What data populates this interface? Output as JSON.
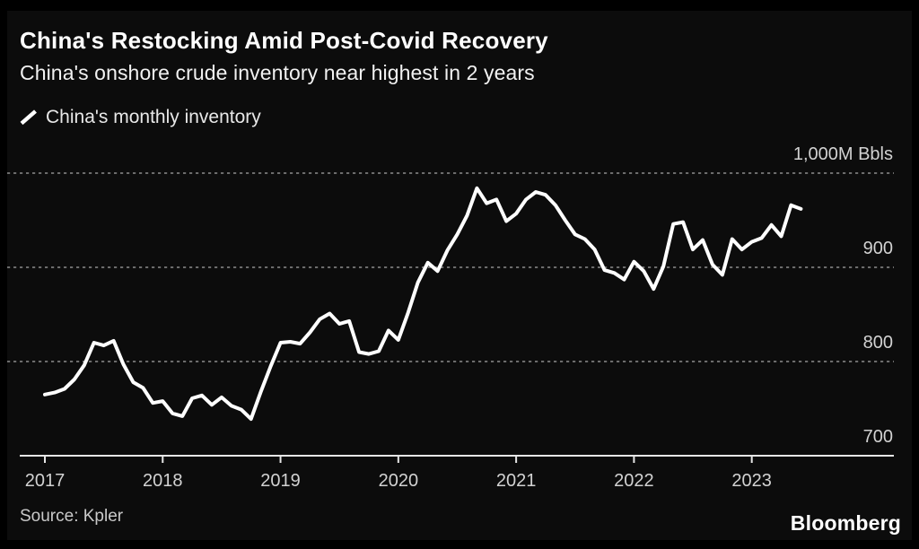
{
  "header": {
    "title": "China's Restocking Amid Post-Covid Recovery",
    "subtitle": "China's onshore crude inventory near highest in 2 years"
  },
  "legend": {
    "marker_icon": "line-swatch-icon",
    "label": "China's monthly inventory",
    "color": "#ffffff"
  },
  "footer": {
    "source": "Source: Kpler",
    "brand": "Bloomberg"
  },
  "colors": {
    "background": "#000000",
    "panel": "#0c0c0c",
    "line": "#ffffff",
    "gridline": "#7a7a7a",
    "axis": "#e6e6e6",
    "axis_text": "#d2d2d2",
    "title_text": "#ffffff"
  },
  "chart_data": {
    "type": "line",
    "title": "China's Restocking Amid Post-Covid Recovery",
    "subtitle": "China's onshore crude inventory near highest in 2 years",
    "xlabel": "",
    "ylabel": "M Bbls",
    "unit_label": "1,000M Bbls",
    "ylim": [
      700,
      1000
    ],
    "grid": "dotted-horizontal",
    "legend_position": "top-left",
    "x_ticks": [
      "2017",
      "2018",
      "2019",
      "2020",
      "2021",
      "2022",
      "2023"
    ],
    "y_tick_values": [
      1000,
      900,
      800,
      700
    ],
    "y_tick_labels": [
      "1,000M Bbls",
      "900",
      "800",
      "700"
    ],
    "y_gridlines": [
      1000,
      900,
      800
    ],
    "series": [
      {
        "name": "China's monthly inventory",
        "color": "#ffffff",
        "frequency": "monthly",
        "x_start": "2017-01",
        "x_end": "2023-06",
        "values": [
          765,
          767,
          771,
          781,
          796,
          820,
          817,
          822,
          797,
          778,
          772,
          756,
          758,
          745,
          742,
          761,
          764,
          754,
          762,
          753,
          749,
          739,
          768,
          795,
          820,
          821,
          819,
          831,
          845,
          851,
          840,
          843,
          810,
          808,
          811,
          833,
          823,
          852,
          884,
          905,
          896,
          918,
          935,
          955,
          984,
          968,
          972,
          949,
          957,
          972,
          980,
          977,
          966,
          950,
          935,
          930,
          919,
          897,
          894,
          887,
          906,
          896,
          877,
          901,
          946,
          948,
          919,
          929,
          903,
          892,
          930,
          919,
          927,
          931,
          945,
          933,
          966,
          962
        ]
      }
    ]
  }
}
